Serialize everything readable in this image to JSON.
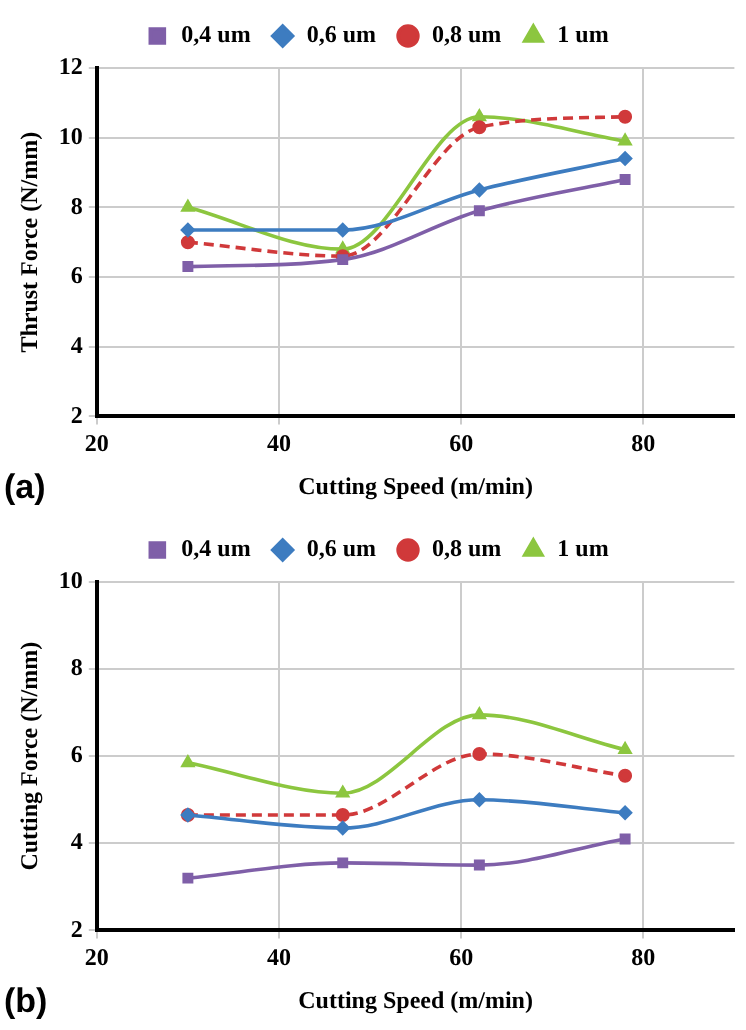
{
  "chart_data": [
    {
      "type": "line",
      "ylabel": "Thrust Force (N/mm)",
      "xlabel": "Cutting Speed (m/min)",
      "annotations": [
        "(a)"
      ],
      "x": [
        30,
        47,
        62,
        78
      ],
      "xlim": [
        20,
        90
      ],
      "xticks": [
        20,
        40,
        60,
        80
      ],
      "ylim": [
        2,
        12
      ],
      "yticks": [
        2,
        4,
        6,
        8,
        10,
        12
      ],
      "grid": true,
      "legend": "top",
      "series": [
        {
          "name": "0,4 um",
          "color": "#7f5fa8",
          "marker": "square",
          "line_style": "solid",
          "values": [
            6.3,
            6.5,
            7.9,
            8.8
          ]
        },
        {
          "name": "0,6 um",
          "color": "#3d7cc0",
          "marker": "diamond",
          "line_style": "solid",
          "values": [
            7.35,
            7.35,
            8.5,
            9.4
          ]
        },
        {
          "name": "0,8 um",
          "color": "#d0393a",
          "marker": "circle",
          "line_style": "dashed",
          "values": [
            7.0,
            6.6,
            10.3,
            10.6
          ]
        },
        {
          "name": "1 um",
          "color": "#8cc63f",
          "marker": "triangle",
          "line_style": "solid",
          "values": [
            8.0,
            6.8,
            10.6,
            9.9
          ]
        }
      ]
    },
    {
      "type": "line",
      "ylabel": "Cutting Force (N/mm)",
      "xlabel": "Cutting Speed (m/min)",
      "annotations": [
        "(b)"
      ],
      "x": [
        30,
        47,
        62,
        78
      ],
      "xlim": [
        20,
        90
      ],
      "xticks": [
        20,
        40,
        60,
        80
      ],
      "ylim": [
        2,
        10
      ],
      "yticks": [
        2,
        4,
        6,
        8,
        10
      ],
      "grid": true,
      "legend": "top",
      "series": [
        {
          "name": "0,4 um",
          "color": "#7f5fa8",
          "marker": "square",
          "line_style": "solid",
          "values": [
            3.2,
            3.55,
            3.5,
            4.1
          ]
        },
        {
          "name": "0,6 um",
          "color": "#3d7cc0",
          "marker": "diamond",
          "line_style": "solid",
          "values": [
            4.65,
            4.35,
            5.0,
            4.7
          ]
        },
        {
          "name": "0,8 um",
          "color": "#d0393a",
          "marker": "circle",
          "line_style": "dashed",
          "values": [
            4.65,
            4.65,
            6.05,
            5.55
          ]
        },
        {
          "name": "1 um",
          "color": "#8cc63f",
          "marker": "triangle",
          "line_style": "solid",
          "values": [
            5.85,
            5.15,
            6.95,
            6.15
          ]
        }
      ]
    }
  ]
}
